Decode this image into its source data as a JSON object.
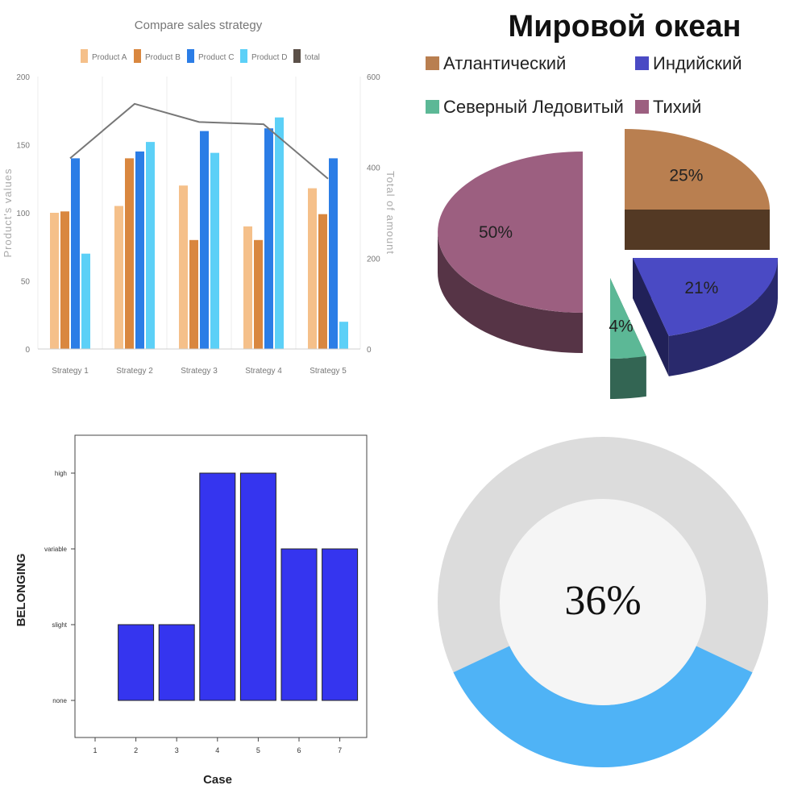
{
  "chart_data": [
    {
      "type": "bar",
      "title": "Compare sales strategy",
      "categories": [
        "Strategy 1",
        "Strategy 2",
        "Strategy 3",
        "Strategy 4",
        "Strategy 5"
      ],
      "series": [
        {
          "name": "Product A",
          "color": "#f5c08a",
          "values": [
            100,
            105,
            120,
            90,
            118
          ]
        },
        {
          "name": "Product B",
          "color": "#d9873f",
          "values": [
            101,
            140,
            80,
            80,
            99
          ]
        },
        {
          "name": "Product C",
          "color": "#2b7de6",
          "values": [
            140,
            145,
            160,
            162,
            140
          ]
        },
        {
          "name": "Product D",
          "color": "#5cd0f7",
          "values": [
            70,
            152,
            144,
            170,
            20
          ]
        }
      ],
      "line_series": {
        "name": "total",
        "color": "#5b5048",
        "line_color": "#777777",
        "values": [
          420,
          540,
          500,
          495,
          375
        ]
      },
      "ylabel": "Product's values",
      "y2label": "Total of amount",
      "ylim": [
        0,
        200
      ],
      "yticks": [
        "0",
        "50",
        "100",
        "150",
        "200"
      ],
      "y2lim": [
        0,
        600
      ],
      "y2ticks": [
        "0",
        "200",
        "400",
        "600"
      ],
      "legend_position": "top"
    },
    {
      "type": "pie",
      "title": "Мировой океан",
      "slices": [
        {
          "name": "Атлантический",
          "value": 25,
          "label": "25%",
          "color": "#b97f50"
        },
        {
          "name": "Индийский",
          "value": 21,
          "label": "21%",
          "color": "#4a4ac4"
        },
        {
          "name": "Северный Ледовитый",
          "value": 4,
          "label": "4%",
          "color": "#5cb896"
        },
        {
          "name": "Тихий",
          "value": 50,
          "label": "50%",
          "color": "#9c5f80"
        }
      ],
      "legend_position": "top"
    },
    {
      "type": "bar",
      "xlabel": "Case",
      "ylabel": "BELONGING",
      "categories": [
        "1",
        "2",
        "3",
        "4",
        "5",
        "6",
        "7"
      ],
      "levels": [
        "none",
        "slight",
        "variable",
        "high"
      ],
      "values": [
        0,
        1,
        1,
        3,
        3,
        2,
        2
      ],
      "value_labels": [
        "",
        "slight",
        "slight",
        "high",
        "high",
        "variable",
        "variable"
      ],
      "color": "#3535ef"
    },
    {
      "type": "pie",
      "label": "36%",
      "value": 36,
      "colors": {
        "filled": "#4fb3f6",
        "remaining": "#dcdcdc",
        "center": "#f5f5f5"
      }
    }
  ]
}
